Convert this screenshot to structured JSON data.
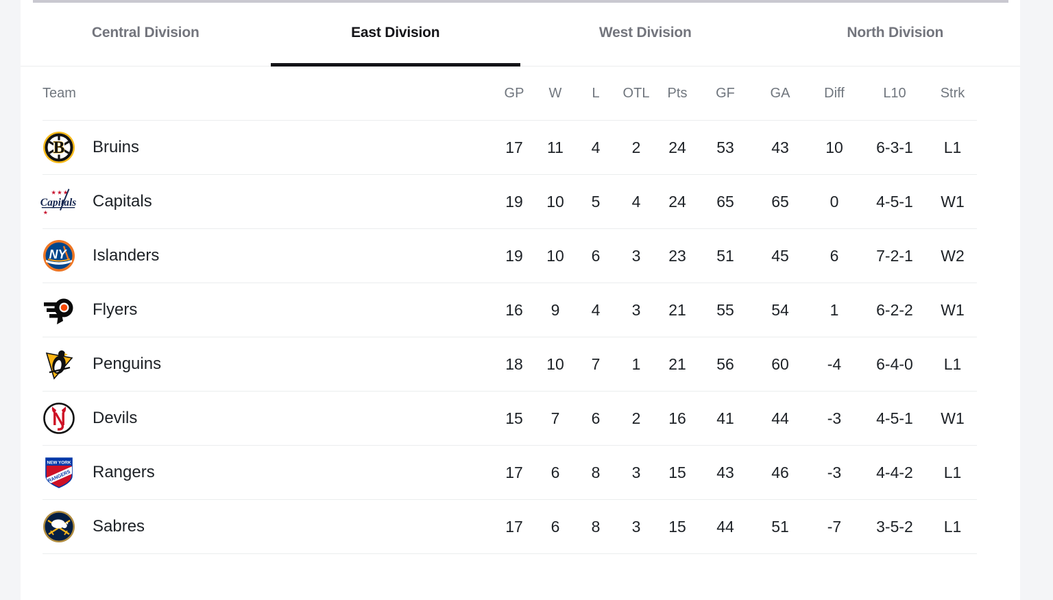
{
  "colors": {
    "page_bg": "#f4f5f7",
    "card_bg": "#ffffff",
    "top_bar": "#c9c8d0",
    "tab_inactive": "#73757d",
    "tab_active": "#141418",
    "tab_underline": "#141418",
    "header_text": "#70767e",
    "cell_text": "#1d2126",
    "divider": "#ebedee"
  },
  "tabs": {
    "items": [
      {
        "key": "central",
        "label": "Central Division",
        "active": false
      },
      {
        "key": "east",
        "label": "East Division",
        "active": true
      },
      {
        "key": "west",
        "label": "West Division",
        "active": false
      },
      {
        "key": "north",
        "label": "North Division",
        "active": false
      }
    ]
  },
  "standings": {
    "columns": [
      {
        "key": "team",
        "label": "Team"
      },
      {
        "key": "gp",
        "label": "GP"
      },
      {
        "key": "w",
        "label": "W"
      },
      {
        "key": "l",
        "label": "L"
      },
      {
        "key": "otl",
        "label": "OTL"
      },
      {
        "key": "pts",
        "label": "Pts"
      },
      {
        "key": "gf",
        "label": "GF"
      },
      {
        "key": "ga",
        "label": "GA"
      },
      {
        "key": "diff",
        "label": "Diff"
      },
      {
        "key": "l10",
        "label": "L10"
      },
      {
        "key": "strk",
        "label": "Strk"
      }
    ],
    "rows": [
      {
        "team": "Bruins",
        "logo_icon": "bruins-logo",
        "gp": "17",
        "w": "11",
        "l": "4",
        "otl": "2",
        "pts": "24",
        "gf": "53",
        "ga": "43",
        "diff": "10",
        "l10": "6-3-1",
        "strk": "L1"
      },
      {
        "team": "Capitals",
        "logo_icon": "capitals-logo",
        "gp": "19",
        "w": "10",
        "l": "5",
        "otl": "4",
        "pts": "24",
        "gf": "65",
        "ga": "65",
        "diff": "0",
        "l10": "4-5-1",
        "strk": "W1"
      },
      {
        "team": "Islanders",
        "logo_icon": "islanders-logo",
        "gp": "19",
        "w": "10",
        "l": "6",
        "otl": "3",
        "pts": "23",
        "gf": "51",
        "ga": "45",
        "diff": "6",
        "l10": "7-2-1",
        "strk": "W2"
      },
      {
        "team": "Flyers",
        "logo_icon": "flyers-logo",
        "gp": "16",
        "w": "9",
        "l": "4",
        "otl": "3",
        "pts": "21",
        "gf": "55",
        "ga": "54",
        "diff": "1",
        "l10": "6-2-2",
        "strk": "W1"
      },
      {
        "team": "Penguins",
        "logo_icon": "penguins-logo",
        "gp": "18",
        "w": "10",
        "l": "7",
        "otl": "1",
        "pts": "21",
        "gf": "56",
        "ga": "60",
        "diff": "-4",
        "l10": "6-4-0",
        "strk": "L1"
      },
      {
        "team": "Devils",
        "logo_icon": "devils-logo",
        "gp": "15",
        "w": "7",
        "l": "6",
        "otl": "2",
        "pts": "16",
        "gf": "41",
        "ga": "44",
        "diff": "-3",
        "l10": "4-5-1",
        "strk": "W1"
      },
      {
        "team": "Rangers",
        "logo_icon": "rangers-logo",
        "gp": "17",
        "w": "6",
        "l": "8",
        "otl": "3",
        "pts": "15",
        "gf": "43",
        "ga": "46",
        "diff": "-3",
        "l10": "4-4-2",
        "strk": "L1"
      },
      {
        "team": "Sabres",
        "logo_icon": "sabres-logo",
        "gp": "17",
        "w": "6",
        "l": "8",
        "otl": "3",
        "pts": "15",
        "gf": "44",
        "ga": "51",
        "diff": "-7",
        "l10": "3-5-2",
        "strk": "L1"
      }
    ]
  }
}
